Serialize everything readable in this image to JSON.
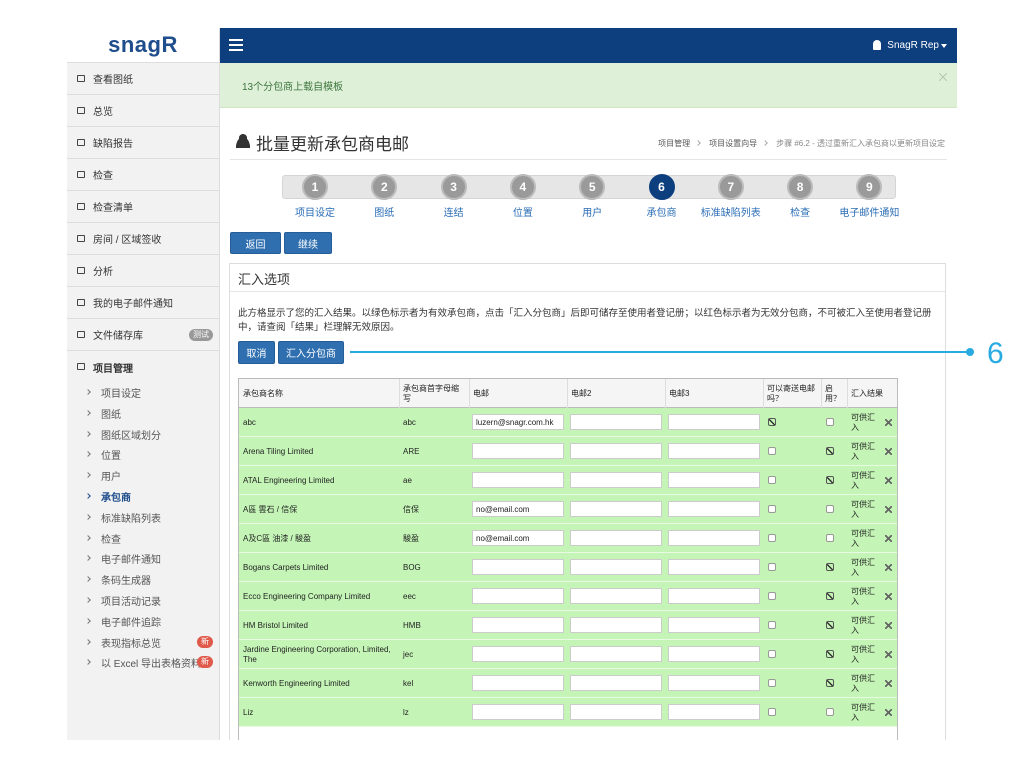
{
  "sidebar": {
    "logo": "snagR",
    "menu": [
      {
        "label": "查看图纸"
      },
      {
        "label": "总览"
      },
      {
        "label": "缺陷报告"
      },
      {
        "label": "检查"
      },
      {
        "label": "检查清单"
      },
      {
        "label": "房间 / 区域签收"
      },
      {
        "label": "分析"
      },
      {
        "label": "我的电子邮件通知"
      },
      {
        "label": "文件储存库",
        "badge": "测试"
      }
    ],
    "section": "项目管理",
    "submenu": [
      {
        "label": "项目设定"
      },
      {
        "label": "图纸"
      },
      {
        "label": "图纸区域划分"
      },
      {
        "label": "位置"
      },
      {
        "label": "用户"
      },
      {
        "label": "承包商",
        "active": true
      },
      {
        "label": "标准缺陷列表"
      },
      {
        "label": "检查"
      },
      {
        "label": "电子邮件通知"
      },
      {
        "label": "条码生成器"
      },
      {
        "label": "项目活动记录"
      },
      {
        "label": "电子邮件追踪"
      },
      {
        "label": "表现指标总览",
        "badge": "新"
      },
      {
        "label": "以 Excel 导出表格资料",
        "badge": "新"
      }
    ]
  },
  "topbar": {
    "user": "SnagR Rep"
  },
  "alert": {
    "message": "13个分包商上载自模板"
  },
  "header": {
    "title": "批量更新承包商电邮",
    "breadcrumb": [
      "项目管理",
      "项目设置向导",
      "步骤 #6.2 - 透过重新汇入承包商以更新项目设定"
    ]
  },
  "wizard": {
    "steps": [
      {
        "number": "1",
        "label": "项目设定"
      },
      {
        "number": "2",
        "label": "图纸"
      },
      {
        "number": "3",
        "label": "连结"
      },
      {
        "number": "4",
        "label": "位置"
      },
      {
        "number": "5",
        "label": "用户"
      },
      {
        "number": "6",
        "label": "承包商",
        "active": true
      },
      {
        "number": "7",
        "label": "标准缺陷列表"
      },
      {
        "number": "8",
        "label": "检查"
      },
      {
        "number": "9",
        "label": "电子邮件通知"
      }
    ]
  },
  "actions": {
    "back": "返回",
    "next": "继续"
  },
  "panel": {
    "title": "汇入选项",
    "description": "此方格显示了您的汇入结果。以绿色标示者为有效承包商，点击「汇入分包商」后即可储存至使用者登记册；以红色标示者为无效分包商，不可被汇入至使用者登记册中，请查阅「结果」栏理解无效原因。",
    "cancel": "取消",
    "import": "汇入分包商"
  },
  "callout": "6",
  "table": {
    "columns": [
      "承包商名称",
      "承包商首字母缩写",
      "电邮",
      "电邮2",
      "电邮3",
      "可以寄送电邮吗？",
      "启用？",
      "汇入结果"
    ],
    "rows": [
      {
        "name": "abc",
        "code": "abc",
        "email": "luzern@snagr.com.hk",
        "send": true,
        "enabled": false,
        "result": "可供汇入"
      },
      {
        "name": "Arena Tiling Limited",
        "code": "ARE",
        "send": false,
        "enabled": true,
        "result": "可供汇入"
      },
      {
        "name": "ATAL Engineering Limited",
        "code": "ae",
        "send": false,
        "enabled": true,
        "result": "可供汇入"
      },
      {
        "name": "A區 雲石 / 信保",
        "code": "信保",
        "email": "no@email.com",
        "send": false,
        "enabled": false,
        "result": "可供汇入"
      },
      {
        "name": "A及C區 油漆 / 駿盈",
        "code": "駿盈",
        "email": "no@email.com",
        "send": false,
        "enabled": false,
        "result": "可供汇入"
      },
      {
        "name": "Bogans Carpets Limited",
        "code": "BOG",
        "send": false,
        "enabled": true,
        "result": "可供汇入"
      },
      {
        "name": "Ecco Engineering Company Limited",
        "code": "eec",
        "send": false,
        "enabled": true,
        "result": "可供汇入"
      },
      {
        "name": "HM Bristol Limited",
        "code": "HMB",
        "send": false,
        "enabled": true,
        "result": "可供汇入"
      },
      {
        "name": "Jardine Engineering Corporation, Limited, The",
        "code": "jec",
        "send": false,
        "enabled": true,
        "result": "可供汇入"
      },
      {
        "name": "Kenworth Engineering Limited",
        "code": "kel",
        "send": false,
        "enabled": true,
        "result": "可供汇入"
      },
      {
        "name": "Liz",
        "code": "lz",
        "send": false,
        "enabled": false,
        "result": "可供汇入"
      }
    ]
  }
}
